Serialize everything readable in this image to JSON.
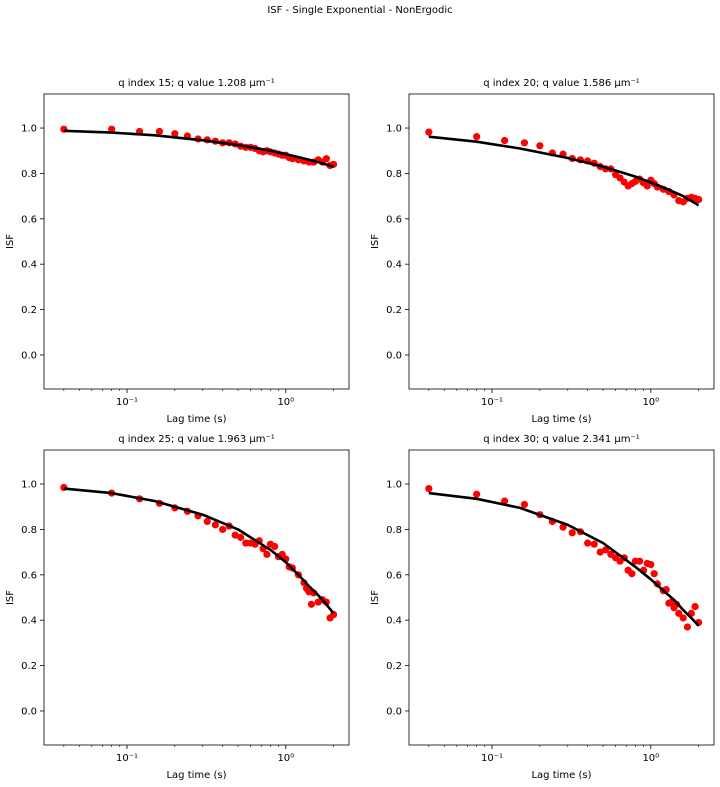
{
  "suptitle": "ISF - Single Exponential - NonErgodic",
  "chart_data": [
    {
      "type": "scatter",
      "title": "q index 15; q value 1.208 μm⁻¹",
      "xlabel": "Lag time (s)",
      "ylabel": "ISF",
      "xscale": "log",
      "xlim": [
        0.03,
        2.5
      ],
      "ylim": [
        -0.15,
        1.15
      ],
      "yticks": [
        "0.0",
        "0.2",
        "0.4",
        "0.6",
        "0.8",
        "1.0"
      ],
      "xticks": [
        "10⁻¹",
        "10⁰"
      ],
      "fit": {
        "x": [
          0.04,
          0.08,
          0.15,
          0.3,
          0.5,
          0.8,
          1.2,
          1.6,
          2.0
        ],
        "y": [
          0.988,
          0.98,
          0.968,
          0.946,
          0.925,
          0.9,
          0.872,
          0.85,
          0.83
        ]
      },
      "points": {
        "x": [
          0.04,
          0.08,
          0.12,
          0.16,
          0.2,
          0.24,
          0.28,
          0.32,
          0.36,
          0.4,
          0.44,
          0.48,
          0.52,
          0.56,
          0.6,
          0.64,
          0.68,
          0.72,
          0.76,
          0.8,
          0.85,
          0.9,
          0.95,
          1.0,
          1.05,
          1.1,
          1.2,
          1.3,
          1.4,
          1.5,
          1.6,
          1.7,
          1.8,
          1.9,
          2.0
        ],
        "y": [
          0.995,
          0.995,
          0.985,
          0.985,
          0.975,
          0.965,
          0.952,
          0.948,
          0.942,
          0.935,
          0.935,
          0.93,
          0.92,
          0.915,
          0.915,
          0.91,
          0.9,
          0.895,
          0.9,
          0.895,
          0.89,
          0.885,
          0.88,
          0.88,
          0.87,
          0.865,
          0.86,
          0.855,
          0.85,
          0.85,
          0.86,
          0.85,
          0.865,
          0.835,
          0.84
        ]
      }
    },
    {
      "type": "scatter",
      "title": "q index 20; q value 1.586 μm⁻¹",
      "xlabel": "Lag time (s)",
      "ylabel": "ISF",
      "xscale": "log",
      "xlim": [
        0.03,
        2.5
      ],
      "ylim": [
        -0.15,
        1.15
      ],
      "yticks": [
        "0.0",
        "0.2",
        "0.4",
        "0.6",
        "0.8",
        "1.0"
      ],
      "xticks": [
        "10⁻¹",
        "10⁰"
      ],
      "fit": {
        "x": [
          0.04,
          0.08,
          0.15,
          0.3,
          0.5,
          0.8,
          1.2,
          1.6,
          2.0
        ],
        "y": [
          0.962,
          0.94,
          0.91,
          0.868,
          0.83,
          0.786,
          0.738,
          0.7,
          0.66
        ]
      },
      "points": {
        "x": [
          0.04,
          0.08,
          0.12,
          0.16,
          0.2,
          0.24,
          0.28,
          0.32,
          0.36,
          0.4,
          0.44,
          0.48,
          0.52,
          0.56,
          0.6,
          0.64,
          0.68,
          0.72,
          0.76,
          0.8,
          0.85,
          0.9,
          0.95,
          1.0,
          1.05,
          1.1,
          1.2,
          1.3,
          1.4,
          1.5,
          1.6,
          1.7,
          1.8,
          1.9,
          2.0
        ],
        "y": [
          0.982,
          0.962,
          0.945,
          0.935,
          0.922,
          0.89,
          0.885,
          0.866,
          0.86,
          0.855,
          0.845,
          0.83,
          0.82,
          0.82,
          0.795,
          0.78,
          0.762,
          0.745,
          0.755,
          0.765,
          0.775,
          0.758,
          0.745,
          0.77,
          0.755,
          0.74,
          0.73,
          0.72,
          0.705,
          0.68,
          0.675,
          0.69,
          0.695,
          0.69,
          0.685
        ]
      }
    },
    {
      "type": "scatter",
      "title": "q index 25; q value 1.963 μm⁻¹",
      "xlabel": "Lag time (s)",
      "ylabel": "ISF",
      "xscale": "log",
      "xlim": [
        0.03,
        2.5
      ],
      "ylim": [
        -0.15,
        1.15
      ],
      "yticks": [
        "0.0",
        "0.2",
        "0.4",
        "0.6",
        "0.8",
        "1.0"
      ],
      "xticks": [
        "10⁻¹",
        "10⁰"
      ],
      "fit": {
        "x": [
          0.04,
          0.08,
          0.15,
          0.3,
          0.5,
          0.8,
          1.0,
          1.2,
          1.4,
          1.6,
          1.8,
          2.0
        ],
        "y": [
          0.98,
          0.96,
          0.925,
          0.865,
          0.8,
          0.71,
          0.655,
          0.6,
          0.55,
          0.51,
          0.47,
          0.43
        ]
      },
      "points": {
        "x": [
          0.04,
          0.08,
          0.12,
          0.16,
          0.2,
          0.24,
          0.28,
          0.32,
          0.36,
          0.4,
          0.44,
          0.48,
          0.52,
          0.56,
          0.6,
          0.64,
          0.68,
          0.72,
          0.76,
          0.8,
          0.85,
          0.9,
          0.95,
          1.0,
          1.05,
          1.1,
          1.2,
          1.3,
          1.35,
          1.4,
          1.45,
          1.5,
          1.6,
          1.7,
          1.8,
          1.9,
          2.0
        ],
        "y": [
          0.985,
          0.96,
          0.935,
          0.915,
          0.895,
          0.88,
          0.86,
          0.835,
          0.82,
          0.8,
          0.815,
          0.775,
          0.765,
          0.74,
          0.74,
          0.735,
          0.75,
          0.715,
          0.69,
          0.735,
          0.725,
          0.68,
          0.69,
          0.67,
          0.635,
          0.63,
          0.6,
          0.565,
          0.54,
          0.525,
          0.47,
          0.52,
          0.48,
          0.49,
          0.48,
          0.41,
          0.425
        ]
      }
    },
    {
      "type": "scatter",
      "title": "q index 30; q value 2.341 μm⁻¹",
      "xlabel": "Lag time (s)",
      "ylabel": "ISF",
      "xscale": "log",
      "xlim": [
        0.03,
        2.5
      ],
      "ylim": [
        -0.15,
        1.15
      ],
      "yticks": [
        "0.0",
        "0.2",
        "0.4",
        "0.6",
        "0.8",
        "1.0"
      ],
      "xticks": [
        "10⁻¹",
        "10⁰"
      ],
      "fit": {
        "x": [
          0.04,
          0.08,
          0.15,
          0.3,
          0.5,
          0.8,
          1.0,
          1.2,
          1.4,
          1.6,
          1.8,
          2.0
        ],
        "y": [
          0.96,
          0.935,
          0.895,
          0.82,
          0.74,
          0.635,
          0.58,
          0.53,
          0.49,
          0.445,
          0.41,
          0.375
        ]
      },
      "points": {
        "x": [
          0.04,
          0.08,
          0.12,
          0.16,
          0.2,
          0.24,
          0.28,
          0.32,
          0.36,
          0.4,
          0.44,
          0.48,
          0.52,
          0.56,
          0.6,
          0.64,
          0.68,
          0.72,
          0.76,
          0.8,
          0.85,
          0.9,
          0.95,
          1.0,
          1.05,
          1.1,
          1.2,
          1.25,
          1.3,
          1.35,
          1.4,
          1.45,
          1.5,
          1.6,
          1.7,
          1.8,
          1.9,
          2.0
        ],
        "y": [
          0.98,
          0.955,
          0.925,
          0.91,
          0.865,
          0.835,
          0.81,
          0.785,
          0.79,
          0.74,
          0.735,
          0.7,
          0.71,
          0.69,
          0.675,
          0.66,
          0.675,
          0.62,
          0.605,
          0.66,
          0.66,
          0.62,
          0.65,
          0.645,
          0.605,
          0.56,
          0.53,
          0.535,
          0.475,
          0.48,
          0.455,
          0.47,
          0.43,
          0.41,
          0.37,
          0.43,
          0.46,
          0.39
        ]
      }
    }
  ]
}
